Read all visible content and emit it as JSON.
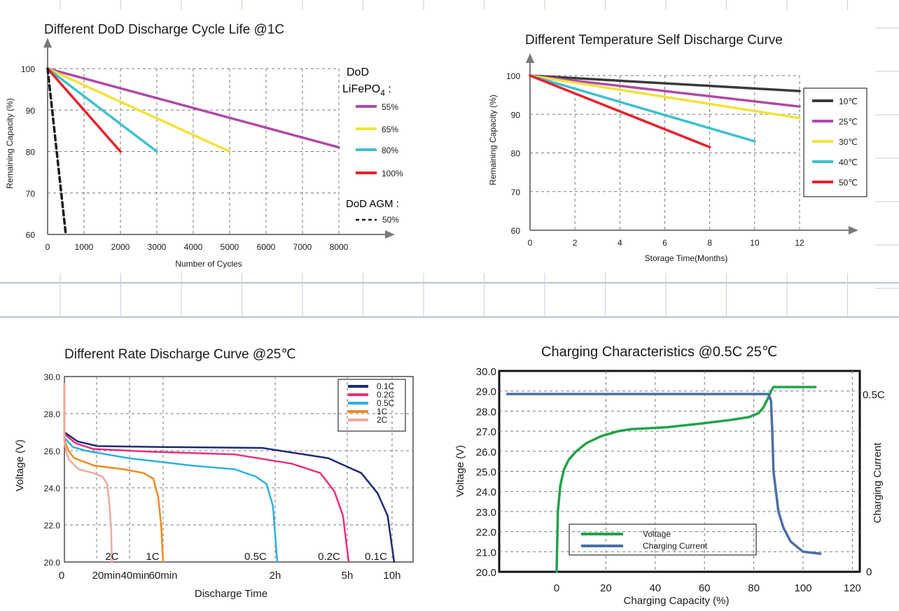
{
  "chart_data": [
    {
      "type": "line",
      "title": "Different DoD Discharge Cycle Life @1C",
      "xlabel": "Number of Cycles",
      "ylabel": "Remaining Capacity (%)",
      "xlim": [
        0,
        8000
      ],
      "ylim": [
        60,
        100
      ],
      "xticks": [
        "0",
        "1000",
        "2000",
        "3000",
        "4000",
        "5000",
        "6000",
        "7000",
        "8000"
      ],
      "yticks": [
        "60",
        "70",
        "80",
        "90",
        "100"
      ],
      "grid": true,
      "legend_heading": "DoD",
      "legend_heading2": "LiFePO",
      "legend_heading2_sub": "4",
      "legend_heading2_suffix": " :",
      "legend_heading3": "DoD AGM :",
      "legend_position": "right",
      "series": [
        {
          "name": "55%",
          "color": "#b04aa6",
          "x": [
            0,
            8000
          ],
          "y": [
            100,
            81
          ]
        },
        {
          "name": "65%",
          "color": "#f2e23a",
          "x": [
            0,
            5000
          ],
          "y": [
            100,
            80
          ]
        },
        {
          "name": "80%",
          "color": "#3cc0d0",
          "x": [
            0,
            3000
          ],
          "y": [
            100,
            80
          ]
        },
        {
          "name": "100%",
          "color": "#e8202a",
          "x": [
            0,
            2000
          ],
          "y": [
            100,
            80
          ]
        },
        {
          "name": "50%",
          "color": "#1a1a1a",
          "dashed": true,
          "x": [
            0,
            500
          ],
          "y": [
            100,
            60
          ]
        }
      ]
    },
    {
      "type": "line",
      "title": "Different Temperature Self Discharge Curve",
      "xlabel": "Storage Time(Months)",
      "ylabel": "Remaining Capacity (%)",
      "xlim": [
        0,
        12
      ],
      "ylim": [
        60,
        100
      ],
      "xticks": [
        "0",
        "2",
        "4",
        "6",
        "8",
        "10",
        "12"
      ],
      "yticks": [
        "60",
        "70",
        "80",
        "90",
        "100"
      ],
      "grid": true,
      "legend_position": "right",
      "series": [
        {
          "name": "10℃",
          "color": "#3a3a3a",
          "x": [
            0,
            12
          ],
          "y": [
            100,
            96
          ]
        },
        {
          "name": "25℃",
          "color": "#b04aa6",
          "x": [
            0,
            12
          ],
          "y": [
            100,
            92
          ]
        },
        {
          "name": "30℃",
          "color": "#f2e23a",
          "x": [
            0,
            12
          ],
          "y": [
            100,
            89
          ]
        },
        {
          "name": "40℃",
          "color": "#3cc0d0",
          "x": [
            0,
            10
          ],
          "y": [
            100,
            83
          ]
        },
        {
          "name": "50℃",
          "color": "#e8202a",
          "x": [
            0,
            8
          ],
          "y": [
            100,
            81.5
          ]
        }
      ]
    },
    {
      "type": "line",
      "title": "Different Rate Discharge Curve @25℃",
      "xlabel": "Discharge Time",
      "ylabel": "Voltage (V)",
      "ylim": [
        20,
        30
      ],
      "yticks": [
        "20.0",
        "22.0",
        "24.0",
        "26.0",
        "28.0",
        "30.0"
      ],
      "xticks": [
        "0",
        "20min",
        "40min",
        "60min",
        "2h",
        "5h",
        "10h"
      ],
      "grid": true,
      "legend_position": "top-right",
      "curve_labels": [
        "2C",
        "1C",
        "0.5C",
        "0.2C",
        "0.1C"
      ],
      "series": [
        {
          "name": "0.1C",
          "color": "#1c2a7a",
          "x": [
            0,
            0.04,
            0.1,
            0.3,
            0.6,
            0.8,
            0.9,
            0.95,
            0.98,
            1
          ],
          "y": [
            27.0,
            26.5,
            26.25,
            26.2,
            26.15,
            25.6,
            24.8,
            23.7,
            22.5,
            20.0
          ]
        },
        {
          "name": "0.2C",
          "color": "#e8307a",
          "x": [
            0,
            0.04,
            0.1,
            0.3,
            0.6,
            0.8,
            0.9,
            0.95,
            0.98,
            1
          ],
          "y": [
            26.9,
            26.4,
            26.1,
            25.95,
            25.8,
            25.3,
            24.8,
            23.8,
            22.5,
            20.0
          ]
        },
        {
          "name": "0.5C",
          "color": "#2fb0e0",
          "x": [
            0,
            0.04,
            0.1,
            0.3,
            0.6,
            0.8,
            0.9,
            0.95,
            0.98,
            1
          ],
          "y": [
            26.7,
            26.2,
            26.0,
            25.6,
            25.2,
            25.0,
            24.6,
            24.2,
            23.0,
            20.0
          ]
        },
        {
          "name": "1C",
          "color": "#f08a1e",
          "x": [
            0,
            0.04,
            0.1,
            0.3,
            0.6,
            0.8,
            0.9,
            0.95,
            0.98,
            1
          ],
          "y": [
            26.6,
            26.0,
            25.6,
            25.2,
            25.0,
            24.8,
            24.5,
            23.5,
            22.0,
            20.0
          ]
        },
        {
          "name": "2C",
          "color": "#f2a7a3",
          "x": [
            0,
            0.04,
            0.1,
            0.3,
            0.6,
            0.8,
            0.9,
            0.95,
            0.98,
            1
          ],
          "y": [
            26.5,
            25.9,
            25.5,
            25.0,
            24.8,
            24.6,
            24.2,
            23.0,
            21.8,
            20.0
          ]
        }
      ]
    },
    {
      "type": "line",
      "title": "Charging Characteristics @0.5C 25℃",
      "xlabel": "Charging Capacity (%)",
      "ylabel": "Voltage (V)",
      "y2label": "Charging Current",
      "xlim": [
        -20,
        120
      ],
      "ylim": [
        20,
        30
      ],
      "xticks": [
        "0",
        "20",
        "40",
        "60",
        "80",
        "100",
        "120"
      ],
      "yticks": [
        "20.0",
        "21.0",
        "22.0",
        "23.0",
        "24.0",
        "25.0",
        "26.0",
        "27.0",
        "28.0",
        "29.0",
        "30.0"
      ],
      "y2ticks": [
        "0",
        "0.5C"
      ],
      "grid": true,
      "legend_position": "bottom-left",
      "series": [
        {
          "name": "Voltage",
          "color": "#22a34a",
          "x": [
            0,
            0.5,
            1.5,
            3,
            5,
            8,
            12,
            18,
            25,
            30,
            45,
            60,
            70,
            78,
            82,
            84,
            86,
            87,
            88,
            92,
            105
          ],
          "y": [
            20.0,
            23.0,
            24.3,
            25.1,
            25.6,
            26.0,
            26.4,
            26.75,
            27.0,
            27.1,
            27.2,
            27.4,
            27.55,
            27.7,
            27.9,
            28.2,
            28.7,
            29.0,
            29.2,
            29.2,
            29.2
          ]
        },
        {
          "name": "Charging Current",
          "color": "#4a6fa5",
          "x": [
            -20,
            80,
            86,
            87,
            87.5,
            88,
            89,
            90,
            92,
            95,
            100,
            107
          ],
          "y": [
            28.85,
            28.85,
            28.85,
            28.5,
            27.0,
            25.0,
            24.0,
            23.0,
            22.2,
            21.5,
            21.0,
            20.9
          ]
        }
      ]
    }
  ]
}
